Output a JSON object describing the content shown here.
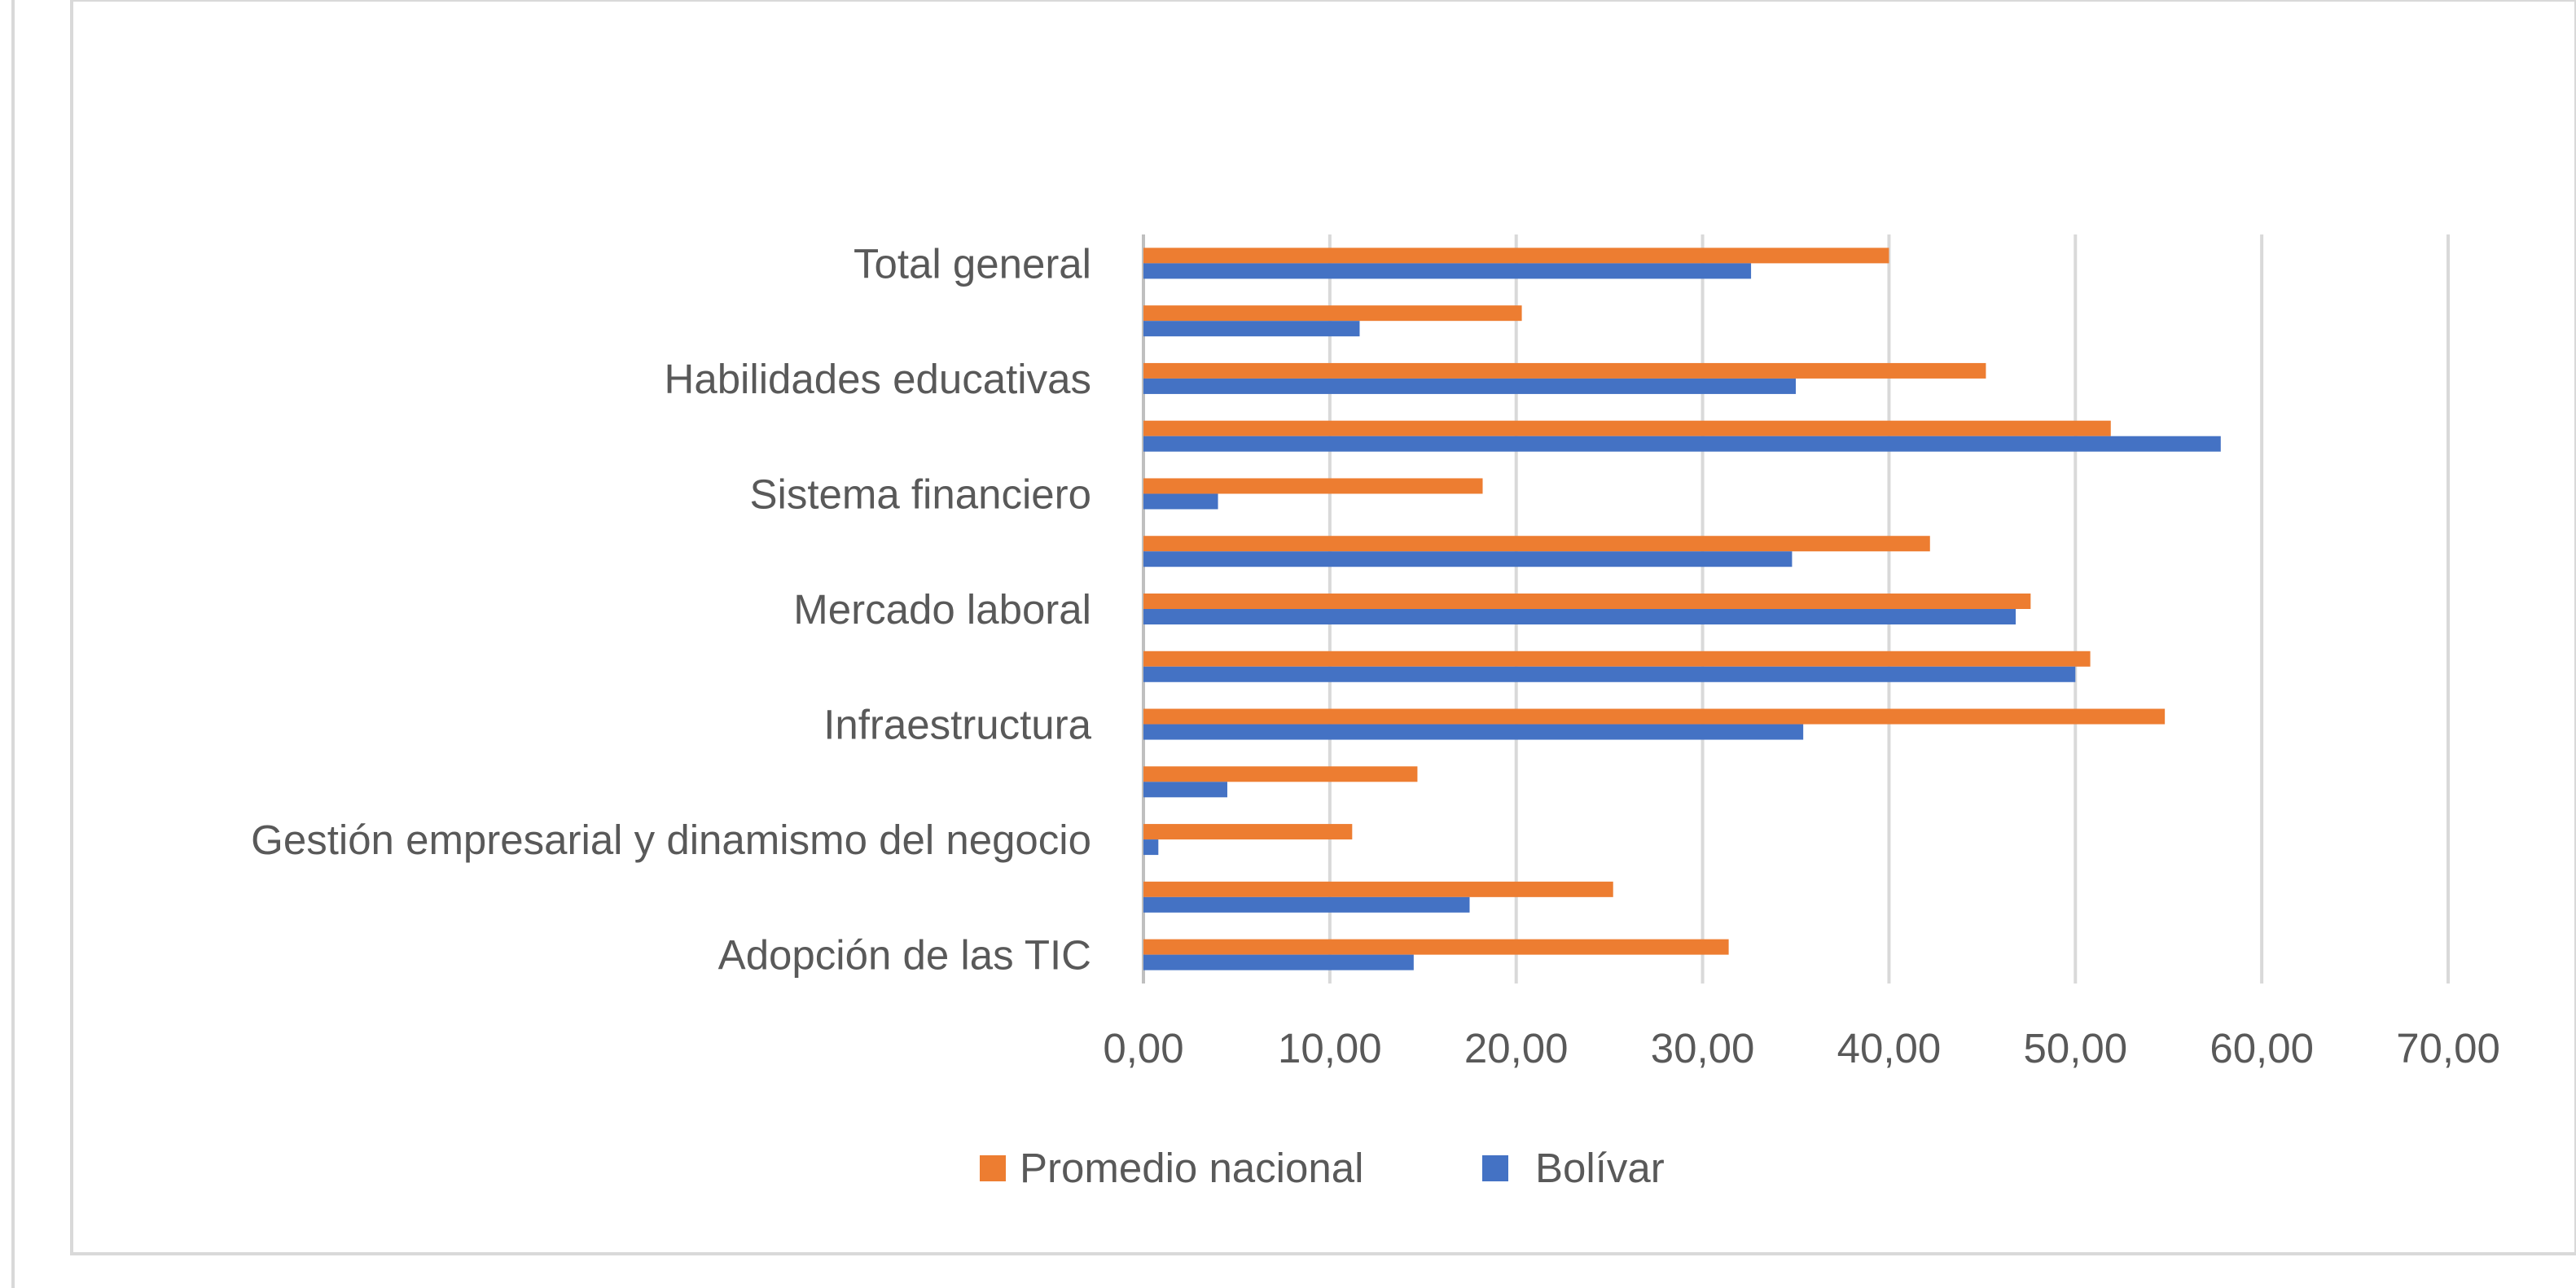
{
  "chart_data": {
    "type": "bar",
    "orientation": "horizontal",
    "categories": [
      "Adopción de las TIC",
      "",
      "Gestión empresarial y dinamismo del negocio",
      "",
      "Infraestructura",
      "",
      "Mercado laboral",
      "",
      "Sistema financiero",
      "",
      "Habilidades educativas",
      "",
      "Total general"
    ],
    "series": [
      {
        "name": "Promedio nacional",
        "color": "#ed7d31",
        "values": [
          31.4,
          25.2,
          11.2,
          14.7,
          54.8,
          50.8,
          47.6,
          42.2,
          18.2,
          51.9,
          45.2,
          20.3,
          40.0
        ]
      },
      {
        "name": "Bolívar",
        "color": "#4472c4",
        "values": [
          14.5,
          17.5,
          0.8,
          4.5,
          35.4,
          50.0,
          46.8,
          34.8,
          4.0,
          57.8,
          35.0,
          11.6,
          32.6
        ]
      }
    ],
    "xlim": [
      0,
      70
    ],
    "x_ticks": [
      "0,00",
      "10,00",
      "20,00",
      "30,00",
      "40,00",
      "50,00",
      "60,00",
      "70,00"
    ],
    "grid": true,
    "legend_position": "bottom",
    "legend": [
      "Promedio nacional",
      "Bolívar"
    ]
  }
}
